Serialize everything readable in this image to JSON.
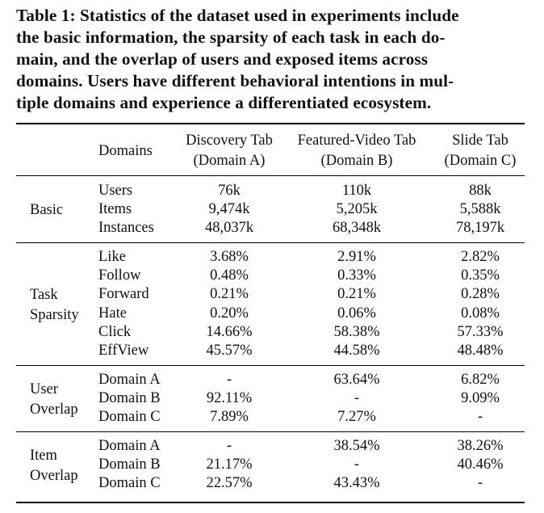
{
  "caption": {
    "lines": [
      "Table 1: Statistics of the dataset used in experiments include",
      "the basic information, the sparsity of each task in each do-",
      "main, and the overlap of users and exposed items across",
      "domains. Users have different behavioral intentions in mul-",
      "tiple domains and experience a differentiated ecosystem."
    ]
  },
  "header": {
    "domains": "Domains",
    "col_a": [
      "Discovery Tab",
      "(Domain A)"
    ],
    "col_b": [
      "Featured-Video Tab",
      "(Domain B)"
    ],
    "col_c": [
      "Slide Tab",
      "(Domain C)"
    ]
  },
  "sections": [
    {
      "group": [
        "Basic"
      ],
      "rows": [
        {
          "label": "Users",
          "a": "76k",
          "b": "110k",
          "c": "88k"
        },
        {
          "label": "Items",
          "a": "9,474k",
          "b": "5,205k",
          "c": "5,588k"
        },
        {
          "label": "Instances",
          "a": "48,037k",
          "b": "68,348k",
          "c": "78,197k"
        }
      ]
    },
    {
      "group": [
        "Task",
        "Sparsity"
      ],
      "rows": [
        {
          "label": "Like",
          "a": "3.68%",
          "b": "2.91%",
          "c": "2.82%"
        },
        {
          "label": "Follow",
          "a": "0.48%",
          "b": "0.33%",
          "c": "0.35%"
        },
        {
          "label": "Forward",
          "a": "0.21%",
          "b": "0.21%",
          "c": "0.28%"
        },
        {
          "label": "Hate",
          "a": "0.20%",
          "b": "0.06%",
          "c": "0.08%"
        },
        {
          "label": "Click",
          "a": "14.66%",
          "b": "58.38%",
          "c": "57.33%"
        },
        {
          "label": "EffView",
          "a": "45.57%",
          "b": "44.58%",
          "c": "48.48%"
        }
      ]
    },
    {
      "group": [
        "User",
        "Overlap"
      ],
      "rows": [
        {
          "label": "Domain A",
          "a": "-",
          "b": "63.64%",
          "c": "6.82%"
        },
        {
          "label": "Domain B",
          "a": "92.11%",
          "b": "-",
          "c": "9.09%"
        },
        {
          "label": "Domain C",
          "a": "7.89%",
          "b": "7.27%",
          "c": "-"
        }
      ]
    },
    {
      "group": [
        "Item",
        "Overlap"
      ],
      "rows": [
        {
          "label": "Domain A",
          "a": "-",
          "b": "38.54%",
          "c": "38.26%"
        },
        {
          "label": "Domain B",
          "a": "21.17%",
          "b": "-",
          "c": "40.46%"
        },
        {
          "label": "Domain C",
          "a": "22.57%",
          "b": "43.43%",
          "c": "-"
        }
      ]
    }
  ]
}
